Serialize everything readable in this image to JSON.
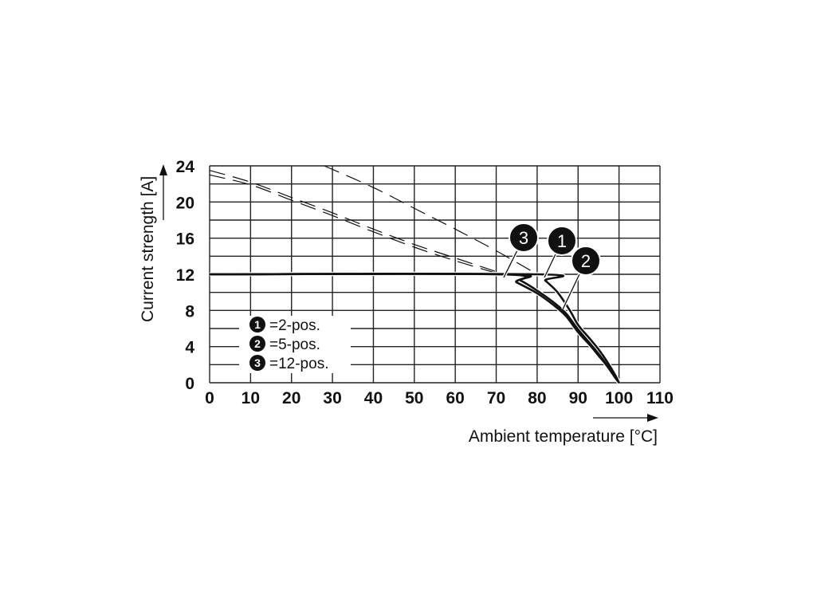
{
  "chart_data": {
    "type": "line",
    "title": "",
    "xlabel": "Ambient temperature [°C]",
    "ylabel": "Current strength [A]",
    "xlim": [
      0,
      110
    ],
    "ylim": [
      0,
      24
    ],
    "xticks": [
      0,
      10,
      20,
      30,
      40,
      50,
      60,
      70,
      80,
      90,
      100,
      110
    ],
    "yticks": [
      0,
      4,
      8,
      12,
      16,
      20,
      24
    ],
    "grid": true,
    "legend": {
      "placement": "lower-left",
      "entries": [
        {
          "marker": "1",
          "label": "=2-pos."
        },
        {
          "marker": "2",
          "label": "=5-pos."
        },
        {
          "marker": "3",
          "label": "=12-pos."
        }
      ]
    },
    "series": [
      {
        "name": "1",
        "label": "2-pos.",
        "style": "solid",
        "points": [
          [
            0,
            12
          ],
          [
            80,
            12
          ],
          [
            82,
            11.3
          ],
          [
            85,
            10
          ],
          [
            88,
            8
          ],
          [
            90,
            6.4
          ],
          [
            93,
            4.8
          ],
          [
            95,
            3.7
          ],
          [
            97,
            2.4
          ],
          [
            99,
            0.9
          ],
          [
            100,
            0
          ]
        ],
        "dashed_extension": [
          [
            28,
            24
          ],
          [
            40,
            21.6
          ],
          [
            50,
            19.3
          ],
          [
            60,
            17
          ],
          [
            70,
            14.6
          ],
          [
            80,
            12
          ]
        ]
      },
      {
        "name": "2",
        "label": "5-pos.",
        "style": "solid",
        "points": [
          [
            0,
            12
          ],
          [
            72,
            12
          ],
          [
            76,
            11.3
          ],
          [
            80,
            10.2
          ],
          [
            84,
            8.9
          ],
          [
            87,
            7.7
          ],
          [
            90,
            5.9
          ],
          [
            93,
            4.3
          ],
          [
            95,
            3.2
          ],
          [
            97,
            2
          ],
          [
            99,
            0.7
          ],
          [
            100,
            0
          ]
        ],
        "dashed_extension": [
          [
            0,
            23.5
          ],
          [
            10,
            22.2
          ],
          [
            20,
            20.5
          ],
          [
            30,
            18.8
          ],
          [
            40,
            17
          ],
          [
            50,
            15.3
          ],
          [
            60,
            13.8
          ],
          [
            72,
            12
          ]
        ]
      },
      {
        "name": "3",
        "label": "12-pos.",
        "style": "solid",
        "points": [
          [
            0,
            12
          ],
          [
            71,
            12
          ],
          [
            75,
            11.1
          ],
          [
            80,
            9.9
          ],
          [
            84,
            8.6
          ],
          [
            87,
            7.4
          ],
          [
            90,
            5.6
          ],
          [
            93,
            4.1
          ],
          [
            95,
            3
          ],
          [
            97,
            1.9
          ],
          [
            99,
            0.6
          ],
          [
            100,
            0
          ]
        ],
        "dashed_extension": [
          [
            0,
            23
          ],
          [
            10,
            21.9
          ],
          [
            20,
            20.2
          ],
          [
            30,
            18.5
          ],
          [
            40,
            16.7
          ],
          [
            50,
            15
          ],
          [
            60,
            13.5
          ],
          [
            71,
            12
          ]
        ]
      }
    ],
    "annotations": [
      "1",
      "2",
      "3"
    ]
  }
}
